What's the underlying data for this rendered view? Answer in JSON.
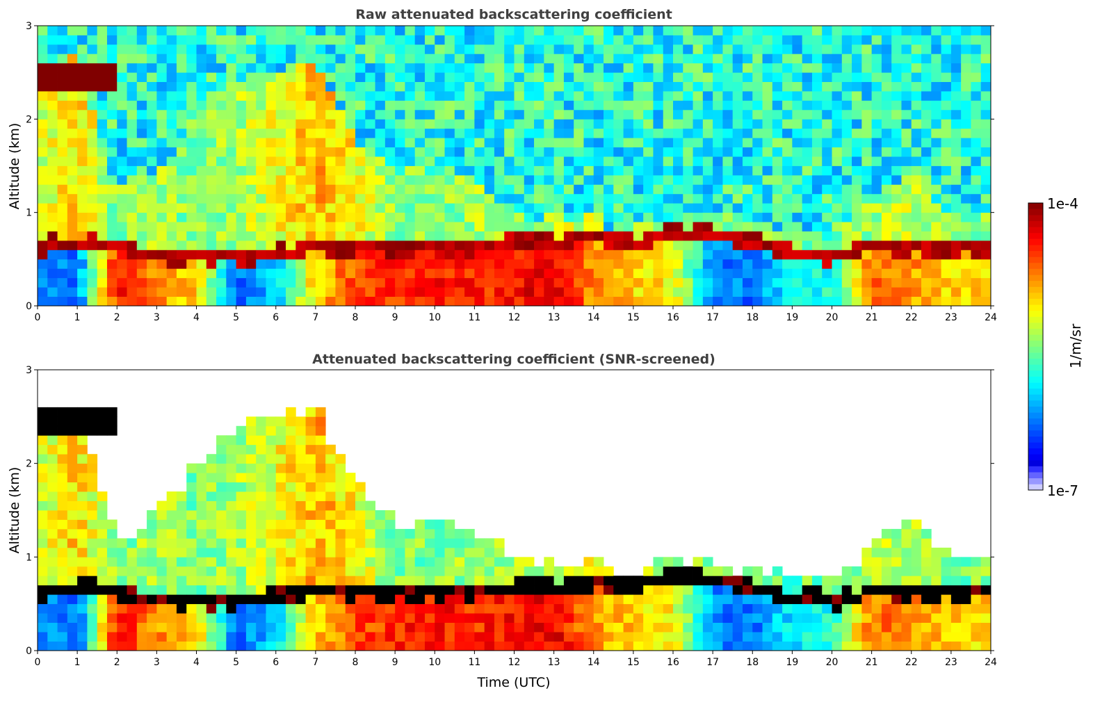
{
  "chart_data": [
    {
      "type": "heatmap",
      "title": "Raw attenuated backscattering coefficient",
      "xlabel": "",
      "ylabel": "Altitude (km)",
      "xlim": [
        0,
        24
      ],
      "ylim": [
        0,
        3
      ],
      "screened": false
    },
    {
      "type": "heatmap",
      "title": "Attenuated backscattering coefficient (SNR-screened)",
      "xlabel": "Time (UTC)",
      "ylabel": "Altitude (km)",
      "xlim": [
        0,
        24
      ],
      "ylim": [
        0,
        3
      ],
      "screened": true
    }
  ],
  "x_ticks": [
    "0",
    "1",
    "2",
    "3",
    "4",
    "5",
    "6",
    "7",
    "8",
    "9",
    "10",
    "11",
    "12",
    "13",
    "14",
    "15",
    "16",
    "17",
    "18",
    "19",
    "20",
    "21",
    "22",
    "23",
    "24"
  ],
  "y_ticks": [
    "0",
    "1",
    "2",
    "3"
  ],
  "profile": {
    "hours": [
      0,
      1,
      2,
      3,
      4,
      5,
      6,
      7,
      8,
      9,
      10,
      11,
      12,
      13,
      14,
      15,
      16,
      17,
      18,
      19,
      20,
      21,
      22,
      23
    ],
    "surface_log10": [
      -6.2,
      -6.3,
      -4.4,
      -4.8,
      -5.0,
      -6.3,
      -6.0,
      -5.0,
      -4.6,
      -4.5,
      -4.4,
      -4.5,
      -4.4,
      -4.3,
      -4.8,
      -5.0,
      -5.1,
      -6.2,
      -6.3,
      -5.9,
      -5.8,
      -4.7,
      -4.8,
      -5.0
    ],
    "boundary_layer_top_km": [
      0.7,
      0.75,
      0.7,
      0.6,
      0.6,
      0.6,
      0.65,
      0.7,
      0.7,
      0.7,
      0.7,
      0.7,
      0.75,
      0.75,
      0.8,
      0.75,
      0.9,
      0.85,
      0.75,
      0.65,
      0.6,
      0.7,
      0.7,
      0.7
    ],
    "upper_layer_top_km": [
      2.5,
      2.6,
      1.2,
      1.5,
      2.0,
      2.4,
      2.5,
      2.6,
      1.8,
      1.4,
      1.4,
      1.3,
      1.0,
      0.9,
      0.95,
      0.8,
      1.0,
      0.95,
      0.9,
      0.8,
      0.8,
      1.1,
      1.5,
      1.0
    ],
    "upper_layer_log10": [
      -5.3,
      -5.0,
      -5.5,
      -5.4,
      -5.5,
      -5.4,
      -5.2,
      -4.9,
      -5.1,
      -5.5,
      -5.5,
      -5.4,
      -5.4,
      -5.3,
      -5.2,
      -5.2,
      -5.5,
      -5.5,
      -5.5,
      -5.6,
      -5.5,
      -5.4,
      -5.3,
      -5.5
    ],
    "cloud": {
      "start_h": 0,
      "end_h": 1.9,
      "base_km": 2.35,
      "top_km": 2.55,
      "log10": -4.0
    }
  },
  "colorbar": {
    "label": "1/m/sr",
    "max_label": "1e-4",
    "min_label": "1e-7",
    "log10_range": [
      -7,
      -4
    ],
    "colormap": "jet"
  }
}
